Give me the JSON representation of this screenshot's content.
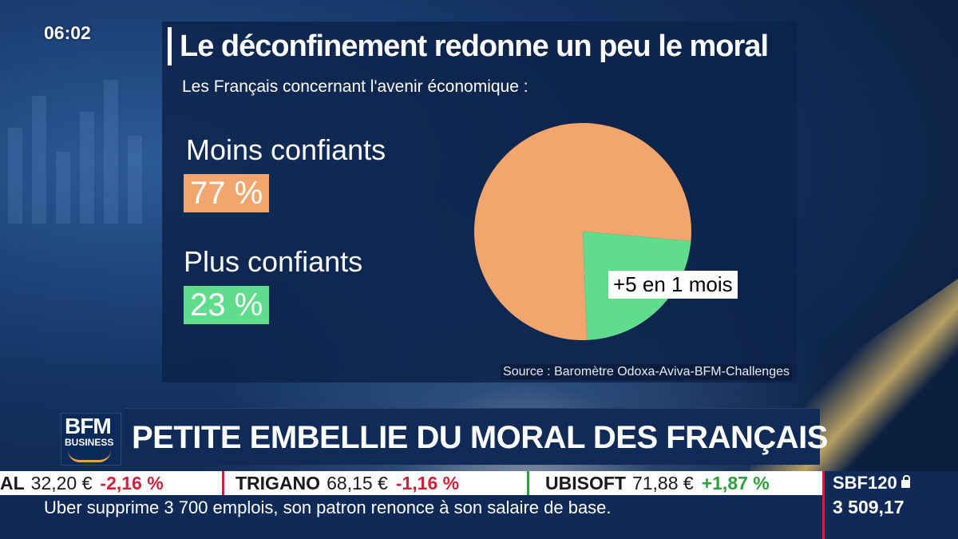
{
  "clock": "06:02",
  "chart_data": {
    "type": "pie",
    "title": "Le déconfinement redonne un peu le moral",
    "subtitle": "Les Français concernant l'avenir économique :",
    "categories": [
      "Moins confiants",
      "Plus confiants"
    ],
    "values": [
      77,
      23
    ],
    "value_labels": [
      "77 %",
      "23 %"
    ],
    "colors": [
      "#f2a56c",
      "#5fdc8c"
    ],
    "annotation": "+5 en 1 mois",
    "source": "Source : Baromètre Odoxa-Aviva-BFM-Challenges"
  },
  "logo": {
    "line1": "BFM",
    "line2": "BUSINESS"
  },
  "headline": "PETITE EMBELLIE DU MORAL DES FRANÇAIS",
  "ticker": [
    {
      "name": "AL",
      "value": "32,20 €",
      "change": "-2,16 %",
      "trend": "neg"
    },
    {
      "name": "TRIGANO",
      "value": "68,15 €",
      "change": "-1,16 %",
      "trend": "neg"
    },
    {
      "name": "UBISOFT",
      "value": "71,88 €",
      "change": "+1,87 %",
      "trend": "pos"
    }
  ],
  "news": "Uber supprime 3 700 emplois, son patron renonce à son salaire de base.",
  "index": {
    "name": "SBF120",
    "value": "3 509,17",
    "icon": "lock-icon"
  },
  "theme": {
    "negative": "#d0213a",
    "positive": "#2f9e3c",
    "bar_bg": "#0f2a56"
  }
}
